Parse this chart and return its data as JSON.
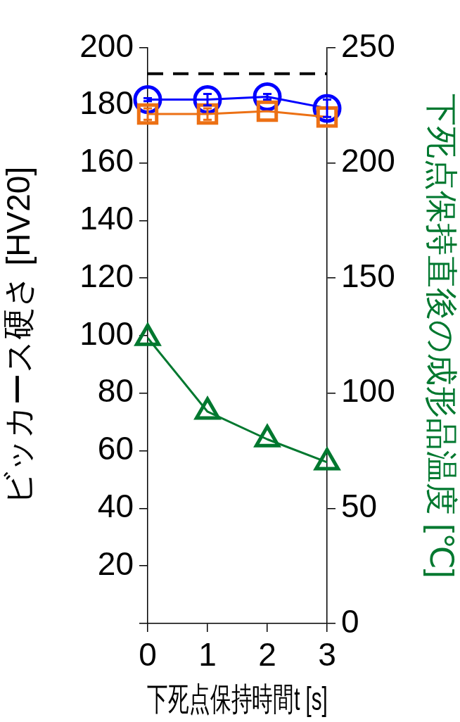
{
  "chart_data": {
    "type": "line",
    "xlabel": "下死点保持時間t [s]",
    "ylabel": "ビッカース硬さ [HV20]",
    "y2label": "下死点保持直後の成形品温度 [℃]",
    "x": [
      0,
      1,
      2,
      3
    ],
    "xlim": [
      0,
      3
    ],
    "xticks": [
      0,
      1,
      2,
      3
    ],
    "ylim": [
      0,
      200
    ],
    "yticks": [
      {
        "value": 0,
        "label": null
      },
      20,
      40,
      60,
      80,
      100,
      120,
      140,
      160,
      180,
      200
    ],
    "y2lim": [
      0,
      250
    ],
    "y2ticks": [
      0,
      50,
      100,
      150,
      200,
      250
    ],
    "series": [
      {
        "color": "#ec7014",
        "values": [
          177,
          177,
          178,
          176
        ],
        "errors": [
          2,
          2,
          null,
          null
        ],
        "marker": "square"
      },
      {
        "color": "#0000ff",
        "values": [
          182,
          182,
          183,
          179
        ],
        "errors": [
          0.5,
          2,
          1,
          3
        ],
        "marker": "circle"
      },
      {
        "color": "#00782f",
        "values": [
          124,
          92,
          80,
          70
        ],
        "axis": "y2",
        "marker": "triangle"
      }
    ],
    "ref_lines": [
      {
        "axis": "y",
        "value": 191,
        "color": "#000000",
        "line_style": "dashed"
      }
    ],
    "grid": false,
    "legend": false
  }
}
